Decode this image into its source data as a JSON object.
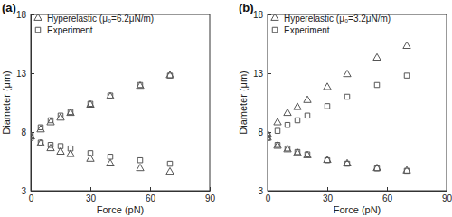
{
  "chart_data": [
    {
      "type": "scatter",
      "title": "(a)",
      "x_label": "Force (pN)",
      "y_label": "Diameter (μm)",
      "xlim": [
        0,
        90
      ],
      "xticks": [
        0,
        30,
        60,
        90
      ],
      "ylim": [
        3,
        18
      ],
      "yticks": [
        3,
        8,
        13,
        18
      ],
      "legend": "upper left",
      "series": [
        {
          "name": "Hyperelastic (μ₀=6.2μN/m)",
          "marker": "triangle",
          "color": "#555555",
          "x": [
            0,
            5,
            10,
            15,
            20,
            30,
            40,
            55,
            70,
            0,
            5,
            10,
            15,
            20,
            30,
            40,
            55,
            70
          ],
          "values": [
            7.6,
            8.2,
            8.8,
            9.2,
            9.6,
            10.3,
            11.0,
            11.9,
            12.8,
            7.6,
            7.0,
            6.6,
            6.3,
            6.1,
            5.7,
            5.3,
            4.9,
            4.6
          ]
        },
        {
          "name": "Experiment",
          "marker": "square",
          "color": "#555555",
          "x": [
            0,
            5,
            10,
            15,
            20,
            30,
            40,
            55,
            70,
            0,
            5,
            10,
            15,
            20,
            30,
            40,
            55,
            70
          ],
          "values": [
            7.7,
            8.4,
            9.0,
            9.4,
            9.7,
            10.4,
            11.1,
            12.0,
            12.8,
            7.5,
            7.1,
            6.9,
            6.8,
            6.6,
            6.2,
            5.9,
            5.6,
            5.3
          ]
        }
      ]
    },
    {
      "type": "scatter",
      "title": "(b)",
      "x_label": "Force (pN)",
      "y_label": "Diameter (μm)",
      "xlim": [
        0,
        90
      ],
      "xticks": [
        0,
        30,
        60,
        90
      ],
      "ylim": [
        3,
        18
      ],
      "yticks": [
        3,
        8,
        13,
        18
      ],
      "legend": "upper left",
      "series": [
        {
          "name": "Hyperelastic (μ₀=3.2μN/m)",
          "marker": "triangle",
          "color": "#555555",
          "x": [
            0,
            5,
            10,
            15,
            20,
            30,
            40,
            55,
            70,
            0,
            5,
            10,
            15,
            20,
            30,
            40,
            55,
            70
          ],
          "values": [
            7.8,
            8.8,
            9.6,
            10.1,
            10.7,
            11.8,
            12.9,
            14.3,
            15.3,
            7.5,
            6.8,
            6.5,
            6.2,
            6.0,
            5.6,
            5.3,
            4.9,
            4.7
          ]
        },
        {
          "name": "Experiment",
          "marker": "square",
          "color": "#555555",
          "x": [
            0,
            5,
            10,
            15,
            20,
            30,
            40,
            55,
            70,
            0,
            5,
            10,
            15,
            20,
            30,
            40,
            55,
            70
          ],
          "values": [
            7.7,
            8.1,
            8.6,
            9.0,
            9.4,
            10.2,
            11.0,
            12.0,
            12.8,
            7.5,
            6.9,
            6.6,
            6.3,
            6.1,
            5.6,
            5.3,
            4.9,
            4.7
          ]
        }
      ]
    }
  ]
}
